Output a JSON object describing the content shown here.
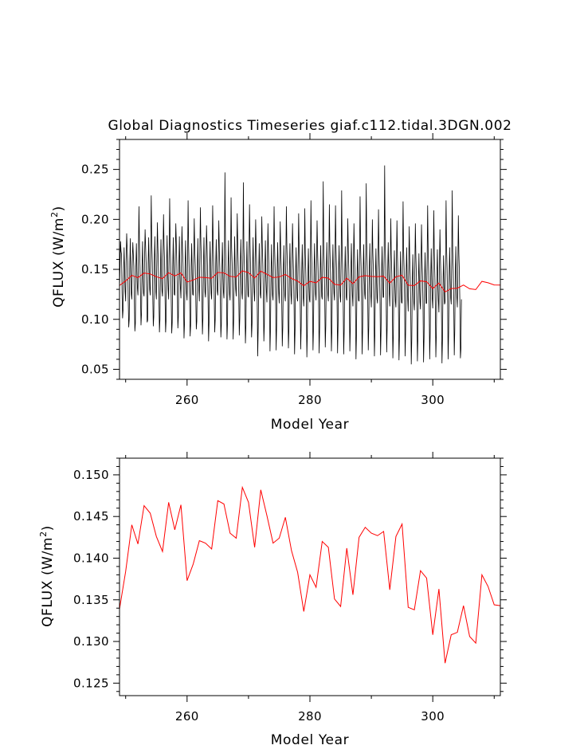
{
  "chart_data": [
    {
      "type": "line",
      "title": "Global Diagnostics Timeseries giaf.c112.tidal.3DGN.002",
      "xlabel": "Model Year",
      "ylabel": "QFLUX (W/m",
      "ylabel_sup": "2",
      "ylabel_close": ")",
      "xlim": [
        249,
        311
      ],
      "ylim": [
        0.04,
        0.28
      ],
      "x_ticks": [
        260,
        280,
        300
      ],
      "x_tick_labels": [
        "260",
        "280",
        "300"
      ],
      "y_ticks": [
        0.05,
        0.1,
        0.15,
        0.2,
        0.25
      ],
      "y_tick_labels": [
        "0.05",
        "0.10",
        "0.15",
        "0.20",
        "0.25"
      ],
      "series": [
        {
          "color": "#000000",
          "sampling": "monthly",
          "x_start": 249.0,
          "step": 0.08333,
          "values": [
            0.131,
            0.152,
            0.178,
            0.168,
            0.165,
            0.126,
            0.101,
            0.11,
            0.145,
            0.172,
            0.149,
            0.128,
            0.118,
            0.16,
            0.186,
            0.17,
            0.158,
            0.121,
            0.092,
            0.1,
            0.15,
            0.181,
            0.147,
            0.125,
            0.12,
            0.158,
            0.177,
            0.165,
            0.153,
            0.121,
            0.088,
            0.096,
            0.152,
            0.176,
            0.148,
            0.131,
            0.124,
            0.168,
            0.213,
            0.175,
            0.154,
            0.124,
            0.094,
            0.106,
            0.152,
            0.178,
            0.142,
            0.126,
            0.123,
            0.162,
            0.19,
            0.173,
            0.156,
            0.128,
            0.097,
            0.099,
            0.156,
            0.182,
            0.151,
            0.13,
            0.124,
            0.17,
            0.224,
            0.178,
            0.157,
            0.124,
            0.093,
            0.103,
            0.158,
            0.183,
            0.147,
            0.127,
            0.12,
            0.161,
            0.197,
            0.172,
            0.15,
            0.123,
            0.087,
            0.1,
            0.15,
            0.18,
            0.144,
            0.128,
            0.123,
            0.164,
            0.205,
            0.175,
            0.158,
            0.121,
            0.087,
            0.099,
            0.153,
            0.184,
            0.149,
            0.13,
            0.12,
            0.168,
            0.221,
            0.175,
            0.154,
            0.121,
            0.086,
            0.097,
            0.151,
            0.182,
            0.146,
            0.125,
            0.124,
            0.165,
            0.196,
            0.177,
            0.155,
            0.127,
            0.091,
            0.103,
            0.154,
            0.183,
            0.147,
            0.131,
            0.121,
            0.161,
            0.193,
            0.171,
            0.157,
            0.122,
            0.081,
            0.096,
            0.151,
            0.179,
            0.149,
            0.126,
            0.119,
            0.159,
            0.219,
            0.174,
            0.152,
            0.12,
            0.083,
            0.094,
            0.153,
            0.176,
            0.145,
            0.125,
            0.124,
            0.163,
            0.201,
            0.17,
            0.154,
            0.123,
            0.09,
            0.098,
            0.147,
            0.181,
            0.143,
            0.129,
            0.118,
            0.167,
            0.212,
            0.176,
            0.155,
            0.122,
            0.085,
            0.101,
            0.154,
            0.182,
            0.148,
            0.127,
            0.122,
            0.16,
            0.194,
            0.173,
            0.15,
            0.119,
            0.078,
            0.098,
            0.15,
            0.178,
            0.146,
            0.126,
            0.12,
            0.165,
            0.214,
            0.177,
            0.153,
            0.126,
            0.087,
            0.1,
            0.155,
            0.18,
            0.144,
            0.128,
            0.124,
            0.162,
            0.199,
            0.17,
            0.151,
            0.121,
            0.082,
            0.095,
            0.148,
            0.177,
            0.149,
            0.127,
            0.121,
            0.166,
            0.247,
            0.176,
            0.154,
            0.123,
            0.08,
            0.097,
            0.152,
            0.179,
            0.147,
            0.125,
            0.119,
            0.161,
            0.222,
            0.172,
            0.156,
            0.122,
            0.08,
            0.099,
            0.149,
            0.183,
            0.145,
            0.13,
            0.123,
            0.164,
            0.206,
            0.175,
            0.152,
            0.125,
            0.084,
            0.101,
            0.153,
            0.18,
            0.15,
            0.126,
            0.12,
            0.159,
            0.237,
            0.172,
            0.152,
            0.119,
            0.076,
            0.094,
            0.147,
            0.178,
            0.144,
            0.124,
            0.122,
            0.166,
            0.215,
            0.177,
            0.154,
            0.12,
            0.082,
            0.096,
            0.151,
            0.182,
            0.146,
            0.127,
            0.118,
            0.16,
            0.2,
            0.171,
            0.153,
            0.118,
            0.063,
            0.092,
            0.148,
            0.176,
            0.142,
            0.125,
            0.121,
            0.163,
            0.203,
            0.174,
            0.155,
            0.123,
            0.078,
            0.095,
            0.15,
            0.179,
            0.145,
            0.128,
            0.117,
            0.158,
            0.196,
            0.169,
            0.151,
            0.121,
            0.068,
            0.091,
            0.146,
            0.175,
            0.143,
            0.124,
            0.119,
            0.162,
            0.213,
            0.172,
            0.152,
            0.12,
            0.069,
            0.094,
            0.149,
            0.177,
            0.147,
            0.126,
            0.116,
            0.157,
            0.198,
            0.168,
            0.15,
            0.117,
            0.073,
            0.092,
            0.145,
            0.174,
            0.141,
            0.123,
            0.118,
            0.163,
            0.213,
            0.173,
            0.153,
            0.119,
            0.071,
            0.09,
            0.147,
            0.176,
            0.144,
            0.124,
            0.115,
            0.159,
            0.196,
            0.167,
            0.148,
            0.116,
            0.065,
            0.089,
            0.144,
            0.172,
            0.14,
            0.122,
            0.118,
            0.16,
            0.206,
            0.171,
            0.15,
            0.118,
            0.07,
            0.093,
            0.146,
            0.175,
            0.142,
            0.121,
            0.113,
            0.155,
            0.211,
            0.166,
            0.147,
            0.115,
            0.062,
            0.087,
            0.142,
            0.171,
            0.139,
            0.12,
            0.117,
            0.161,
            0.219,
            0.17,
            0.151,
            0.117,
            0.069,
            0.091,
            0.147,
            0.176,
            0.145,
            0.125,
            0.119,
            0.158,
            0.199,
            0.169,
            0.149,
            0.118,
            0.066,
            0.092,
            0.145,
            0.174,
            0.143,
            0.123,
            0.12,
            0.164,
            0.238,
            0.174,
            0.152,
            0.121,
            0.072,
            0.094,
            0.148,
            0.177,
            0.144,
            0.124,
            0.118,
            0.16,
            0.215,
            0.17,
            0.15,
            0.119,
            0.068,
            0.09,
            0.146,
            0.175,
            0.142,
            0.126,
            0.119,
            0.162,
            0.214,
            0.172,
            0.151,
            0.118,
            0.066,
            0.093,
            0.148,
            0.174,
            0.141,
            0.123,
            0.117,
            0.159,
            0.229,
            0.168,
            0.149,
            0.117,
            0.065,
            0.089,
            0.144,
            0.173,
            0.143,
            0.122,
            0.119,
            0.161,
            0.201,
            0.171,
            0.15,
            0.119,
            0.068,
            0.092,
            0.147,
            0.176,
            0.145,
            0.124,
            0.113,
            0.154,
            0.196,
            0.165,
            0.146,
            0.114,
            0.06,
            0.085,
            0.141,
            0.17,
            0.139,
            0.119,
            0.118,
            0.163,
            0.223,
            0.172,
            0.152,
            0.118,
            0.065,
            0.091,
            0.146,
            0.175,
            0.142,
            0.125,
            0.12,
            0.165,
            0.236,
            0.175,
            0.153,
            0.12,
            0.069,
            0.093,
            0.148,
            0.176,
            0.144,
            0.123,
            0.112,
            0.155,
            0.2,
            0.166,
            0.147,
            0.115,
            0.063,
            0.087,
            0.143,
            0.171,
            0.14,
            0.121,
            0.116,
            0.158,
            0.21,
            0.169,
            0.149,
            0.116,
            0.064,
            0.088,
            0.145,
            0.173,
            0.142,
            0.122,
            0.122,
            0.166,
            0.254,
            0.176,
            0.154,
            0.119,
            0.067,
            0.094,
            0.149,
            0.177,
            0.146,
            0.126,
            0.113,
            0.156,
            0.201,
            0.165,
            0.146,
            0.113,
            0.061,
            0.085,
            0.14,
            0.169,
            0.138,
            0.118,
            0.112,
            0.152,
            0.199,
            0.164,
            0.144,
            0.112,
            0.059,
            0.083,
            0.139,
            0.168,
            0.137,
            0.117,
            0.116,
            0.16,
            0.218,
            0.17,
            0.15,
            0.116,
            0.063,
            0.089,
            0.144,
            0.172,
            0.141,
            0.12,
            0.108,
            0.15,
            0.193,
            0.161,
            0.142,
            0.11,
            0.055,
            0.08,
            0.136,
            0.165,
            0.135,
            0.116,
            0.109,
            0.153,
            0.196,
            0.163,
            0.143,
            0.111,
            0.058,
            0.082,
            0.137,
            0.166,
            0.136,
            0.117,
            0.11,
            0.151,
            0.195,
            0.162,
            0.143,
            0.112,
            0.057,
            0.081,
            0.138,
            0.167,
            0.137,
            0.116,
            0.116,
            0.159,
            0.214,
            0.169,
            0.148,
            0.114,
            0.06,
            0.086,
            0.142,
            0.171,
            0.14,
            0.12,
            0.111,
            0.156,
            0.209,
            0.167,
            0.146,
            0.113,
            0.062,
            0.085,
            0.141,
            0.17,
            0.139,
            0.119,
            0.107,
            0.149,
            0.19,
            0.16,
            0.141,
            0.109,
            0.056,
            0.079,
            0.135,
            0.164,
            0.134,
            0.115,
            0.117,
            0.162,
            0.219,
            0.171,
            0.15,
            0.117,
            0.06,
            0.087,
            0.143,
            0.172,
            0.141,
            0.121,
            0.115,
            0.158,
            0.229,
            0.169,
            0.148,
            0.116,
            0.064,
            0.089,
            0.144,
            0.173,
            0.142,
            0.122,
            0.112,
            0.154,
            0.204,
            0.166,
            0.146,
            0.115,
            0.061,
            0.07,
            0.12
          ]
        },
        {
          "color": "#ff0000",
          "sampling": "annual",
          "x": [
            249.0,
            250.0,
            251.0,
            252.0,
            253.0,
            254.0,
            255.0,
            256.0,
            257.0,
            258.0,
            259.0,
            260.0,
            261.0,
            262.0,
            263.0,
            264.0,
            265.0,
            266.0,
            267.0,
            268.0,
            269.0,
            270.0,
            271.0,
            272.0,
            273.0,
            274.0,
            275.0,
            276.0,
            277.0,
            278.0,
            279.0,
            280.0,
            281.0,
            282.0,
            283.0,
            284.0,
            285.0,
            286.0,
            287.0,
            288.0,
            289.0,
            290.0,
            291.0,
            292.0,
            293.0,
            294.0,
            295.0,
            296.0,
            297.0,
            298.0,
            299.0,
            300.0,
            301.0,
            302.0,
            303.0,
            304.0,
            305.0,
            306.0,
            307.0,
            308.0,
            309.0,
            310.0,
            311.0
          ],
          "values": [
            0.1339,
            0.1384,
            0.144,
            0.1417,
            0.1463,
            0.1454,
            0.1426,
            0.1408,
            0.1467,
            0.1434,
            0.1464,
            0.1373,
            0.1393,
            0.1421,
            0.1418,
            0.1411,
            0.1469,
            0.1465,
            0.143,
            0.1424,
            0.1485,
            0.1467,
            0.1413,
            0.1482,
            0.1451,
            0.1418,
            0.1424,
            0.1449,
            0.1409,
            0.1383,
            0.1336,
            0.138,
            0.1365,
            0.142,
            0.1413,
            0.1351,
            0.1342,
            0.1412,
            0.1356,
            0.1425,
            0.1437,
            0.143,
            0.1427,
            0.1432,
            0.1362,
            0.1426,
            0.1441,
            0.1341,
            0.1338,
            0.1385,
            0.1376,
            0.1308,
            0.1363,
            0.1274,
            0.1308,
            0.1311,
            0.1343,
            0.1306,
            0.1298,
            0.138,
            0.1366,
            0.1344,
            0.1343
          ]
        }
      ]
    },
    {
      "type": "line",
      "title": "",
      "xlabel": "Model Year",
      "ylabel": "QFLUX (W/m",
      "ylabel_sup": "2",
      "ylabel_close": ")",
      "xlim": [
        249,
        311
      ],
      "ylim": [
        0.1235,
        0.152
      ],
      "x_ticks": [
        260,
        280,
        300
      ],
      "x_tick_labels": [
        "260",
        "280",
        "300"
      ],
      "y_ticks": [
        0.125,
        0.13,
        0.135,
        0.14,
        0.145,
        0.15
      ],
      "y_tick_labels": [
        "0.125",
        "0.130",
        "0.135",
        "0.140",
        "0.145",
        "0.150"
      ],
      "series": [
        {
          "color": "#ff0000",
          "sampling": "annual",
          "x": [
            249.0,
            250.0,
            251.0,
            252.0,
            253.0,
            254.0,
            255.0,
            256.0,
            257.0,
            258.0,
            259.0,
            260.0,
            261.0,
            262.0,
            263.0,
            264.0,
            265.0,
            266.0,
            267.0,
            268.0,
            269.0,
            270.0,
            271.0,
            272.0,
            273.0,
            274.0,
            275.0,
            276.0,
            277.0,
            278.0,
            279.0,
            280.0,
            281.0,
            282.0,
            283.0,
            284.0,
            285.0,
            286.0,
            287.0,
            288.0,
            289.0,
            290.0,
            291.0,
            292.0,
            293.0,
            294.0,
            295.0,
            296.0,
            297.0,
            298.0,
            299.0,
            300.0,
            301.0,
            302.0,
            303.0,
            304.0,
            305.0,
            306.0,
            307.0,
            308.0,
            309.0,
            310.0,
            311.0
          ],
          "values": [
            0.1339,
            0.1384,
            0.144,
            0.1417,
            0.1463,
            0.1454,
            0.1426,
            0.1408,
            0.1467,
            0.1434,
            0.1464,
            0.1373,
            0.1393,
            0.1421,
            0.1418,
            0.1411,
            0.1469,
            0.1465,
            0.143,
            0.1424,
            0.1485,
            0.1467,
            0.1413,
            0.1482,
            0.1451,
            0.1418,
            0.1424,
            0.1449,
            0.1409,
            0.1383,
            0.1336,
            0.138,
            0.1365,
            0.142,
            0.1413,
            0.1351,
            0.1342,
            0.1412,
            0.1356,
            0.1425,
            0.1437,
            0.143,
            0.1427,
            0.1432,
            0.1362,
            0.1426,
            0.1441,
            0.1341,
            0.1338,
            0.1385,
            0.1376,
            0.1308,
            0.1363,
            0.1274,
            0.1308,
            0.1311,
            0.1343,
            0.1306,
            0.1298,
            0.138,
            0.1366,
            0.1344,
            0.1343
          ]
        }
      ]
    }
  ]
}
